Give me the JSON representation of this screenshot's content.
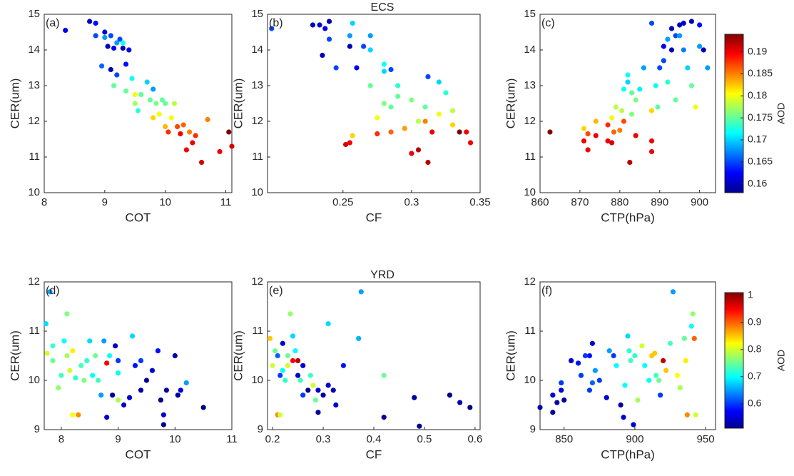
{
  "chart_data": [
    {
      "type": "scatter",
      "panel_label": "(a)",
      "xlabel": "COT",
      "ylabel": "CER(um)",
      "colormap": "jet",
      "xlim": [
        8,
        11.1
      ],
      "ylim": [
        10,
        15
      ],
      "xticks": [
        8,
        9,
        10,
        11
      ],
      "yticks": [
        10,
        11,
        12,
        13,
        14,
        15
      ],
      "clim": [
        0.158,
        0.194
      ],
      "x": [
        8.35,
        8.75,
        8.85,
        8.85,
        9.0,
        9.0,
        9.05,
        9.1,
        9.15,
        9.2,
        9.25,
        9.3,
        9.4,
        9.35,
        8.95,
        9.1,
        9.2,
        9.3,
        9.15,
        9.35,
        9.45,
        9.5,
        9.55,
        9.6,
        9.7,
        9.75,
        9.8,
        9.85,
        9.8,
        9.9,
        9.95,
        10.0,
        10.05,
        10.1,
        10.15,
        10.2,
        10.25,
        10.3,
        10.35,
        10.4,
        10.45,
        10.5,
        10.6,
        10.7,
        10.9,
        11.05,
        11.1,
        9.5,
        10.0
      ],
      "y": [
        14.55,
        14.8,
        14.75,
        14.4,
        14.5,
        14.35,
        14.1,
        14.4,
        14.05,
        14.2,
        14.3,
        14.05,
        14.0,
        13.6,
        13.55,
        13.45,
        13.3,
        14.2,
        13.0,
        12.85,
        13.2,
        12.75,
        12.3,
        12.75,
        13.1,
        12.6,
        12.9,
        12.5,
        12.1,
        12.2,
        12.6,
        11.85,
        11.7,
        12.1,
        12.5,
        11.85,
        11.65,
        11.9,
        11.2,
        11.7,
        11.4,
        11.6,
        10.85,
        12.05,
        11.15,
        11.7,
        11.3,
        12.5,
        12.5
      ],
      "color_values": [
        0.162,
        0.16,
        0.163,
        0.165,
        0.161,
        0.168,
        0.16,
        0.165,
        0.162,
        0.168,
        0.165,
        0.16,
        0.162,
        0.163,
        0.166,
        0.16,
        0.165,
        0.172,
        0.175,
        0.175,
        0.172,
        0.18,
        0.173,
        0.175,
        0.17,
        0.175,
        0.168,
        0.176,
        0.182,
        0.18,
        0.175,
        0.183,
        0.188,
        0.18,
        0.178,
        0.187,
        0.19,
        0.186,
        0.19,
        0.185,
        0.19,
        0.188,
        0.191,
        0.185,
        0.19,
        0.194,
        0.191,
        0.177,
        0.175
      ]
    },
    {
      "type": "scatter",
      "title": "ECS",
      "panel_label": "(b)",
      "xlabel": "CF",
      "ylabel": "CER(um)",
      "colormap": "jet",
      "xlim": [
        0.195,
        0.35
      ],
      "ylim": [
        10,
        15
      ],
      "xticks": [
        0.25,
        0.3,
        0.35
      ],
      "yticks": [
        10,
        11,
        12,
        13,
        14,
        15
      ],
      "clim": [
        0.158,
        0.194
      ],
      "x": [
        0.198,
        0.228,
        0.233,
        0.237,
        0.24,
        0.235,
        0.24,
        0.245,
        0.255,
        0.257,
        0.255,
        0.26,
        0.265,
        0.27,
        0.27,
        0.28,
        0.285,
        0.28,
        0.29,
        0.29,
        0.28,
        0.275,
        0.285,
        0.3,
        0.31,
        0.305,
        0.295,
        0.285,
        0.275,
        0.3,
        0.305,
        0.312,
        0.31,
        0.315,
        0.32,
        0.325,
        0.32,
        0.312,
        0.33,
        0.335,
        0.34,
        0.343,
        0.255,
        0.257,
        0.252,
        0.33,
        0.27
      ],
      "y": [
        14.6,
        14.7,
        14.7,
        14.6,
        14.8,
        13.85,
        14.3,
        13.5,
        14.4,
        14.75,
        14.1,
        13.5,
        14.1,
        14.4,
        14.0,
        13.6,
        13.45,
        13.4,
        13.0,
        12.7,
        12.5,
        12.1,
        12.4,
        12.6,
        12.4,
        12.0,
        11.8,
        11.7,
        11.65,
        11.1,
        11.2,
        10.85,
        12.0,
        11.7,
        12.2,
        12.8,
        13.1,
        13.25,
        12.3,
        11.7,
        11.7,
        11.4,
        11.4,
        11.6,
        11.35,
        11.9,
        13.0
      ],
      "color_values": [
        0.165,
        0.16,
        0.161,
        0.162,
        0.16,
        0.16,
        0.165,
        0.165,
        0.168,
        0.17,
        0.16,
        0.162,
        0.165,
        0.168,
        0.17,
        0.172,
        0.165,
        0.17,
        0.173,
        0.175,
        0.176,
        0.18,
        0.175,
        0.176,
        0.175,
        0.178,
        0.184,
        0.186,
        0.188,
        0.19,
        0.192,
        0.192,
        0.185,
        0.19,
        0.18,
        0.173,
        0.17,
        0.165,
        0.178,
        0.194,
        0.19,
        0.19,
        0.19,
        0.182,
        0.191,
        0.182,
        0.175
      ]
    },
    {
      "type": "scatter",
      "panel_label": "(c)",
      "xlabel": "CTP(hPa)",
      "ylabel": "CER(um)",
      "colormap": "jet",
      "xlim": [
        860,
        904
      ],
      "ylim": [
        10,
        15
      ],
      "xticks": [
        860,
        870,
        880,
        890,
        900
      ],
      "yticks": [
        10,
        11,
        12,
        13,
        14,
        15
      ],
      "clim": [
        0.158,
        0.194
      ],
      "colorbar": {
        "label": "AOD",
        "ticks": [
          0.16,
          0.165,
          0.17,
          0.175,
          0.18,
          0.185,
          0.19
        ]
      },
      "x": [
        862.5,
        871,
        871,
        872,
        872,
        874,
        874,
        877,
        877,
        878,
        878,
        878.5,
        879,
        880,
        880.5,
        881,
        881,
        882,
        882,
        882.5,
        883,
        883,
        884,
        884,
        885,
        886,
        888,
        888,
        888,
        888,
        889,
        889.5,
        890,
        891,
        891,
        892,
        892,
        893,
        893,
        894,
        894,
        895,
        895,
        896,
        896,
        897,
        898,
        898,
        899,
        900,
        900,
        901,
        902
      ],
      "y": [
        11.7,
        11.8,
        11.45,
        11.2,
        11.65,
        12.0,
        11.6,
        11.9,
        11.45,
        11.4,
        12.1,
        11.7,
        12.4,
        11.75,
        12.3,
        12.0,
        12.9,
        13.1,
        13.3,
        10.85,
        12.8,
        12.2,
        12.6,
        11.6,
        12.9,
        13.5,
        14.75,
        11.15,
        11.45,
        12.3,
        13.0,
        12.4,
        13.5,
        13.7,
        14.1,
        14.3,
        13.1,
        14.0,
        14.6,
        14.4,
        12.6,
        14.7,
        14.4,
        14.75,
        14.0,
        13.5,
        14.8,
        13.0,
        12.4,
        14.7,
        14.1,
        14.0,
        13.5
      ],
      "color_values": [
        0.194,
        0.182,
        0.19,
        0.19,
        0.187,
        0.183,
        0.19,
        0.188,
        0.19,
        0.191,
        0.18,
        0.186,
        0.178,
        0.185,
        0.178,
        0.187,
        0.172,
        0.17,
        0.172,
        0.192,
        0.175,
        0.176,
        0.176,
        0.19,
        0.171,
        0.168,
        0.165,
        0.19,
        0.19,
        0.182,
        0.172,
        0.175,
        0.165,
        0.165,
        0.162,
        0.168,
        0.173,
        0.16,
        0.16,
        0.165,
        0.175,
        0.16,
        0.168,
        0.161,
        0.167,
        0.17,
        0.16,
        0.175,
        0.18,
        0.163,
        0.168,
        0.16,
        0.168
      ]
    },
    {
      "type": "scatter",
      "panel_label": "(d)",
      "xlabel": "COT",
      "ylabel": "CER(um)",
      "colormap": "jet",
      "xlim": [
        7.7,
        11
      ],
      "ylim": [
        9,
        12
      ],
      "xticks": [
        8,
        9,
        10,
        11
      ],
      "yticks": [
        9,
        10,
        11,
        12
      ],
      "clim": [
        0.51,
        1.01
      ],
      "x": [
        7.73,
        7.8,
        7.75,
        7.85,
        7.85,
        7.95,
        8.0,
        8.05,
        8.1,
        8.1,
        8.15,
        8.2,
        8.2,
        8.3,
        8.25,
        8.35,
        8.4,
        8.45,
        8.5,
        8.55,
        8.6,
        8.65,
        8.7,
        8.75,
        8.8,
        8.85,
        8.8,
        8.9,
        8.95,
        9.0,
        9.0,
        9.0,
        9.1,
        9.2,
        9.25,
        9.3,
        9.4,
        9.4,
        9.5,
        9.6,
        9.7,
        9.75,
        9.8,
        9.8,
        9.85,
        10.0,
        10.05,
        10.1,
        10.2,
        10.5
      ],
      "y": [
        11.15,
        11.8,
        10.55,
        10.7,
        10.4,
        9.85,
        10.1,
        10.8,
        11.35,
        10.5,
        10.2,
        10.6,
        9.3,
        9.3,
        10.05,
        10.3,
        10.0,
        10.4,
        10.8,
        10.1,
        10.5,
        10.0,
        9.7,
        10.8,
        10.35,
        10.5,
        9.25,
        9.7,
        10.7,
        10.15,
        10.4,
        9.6,
        9.5,
        9.65,
        10.9,
        10.3,
        10.4,
        9.8,
        10.0,
        10.2,
        10.6,
        9.6,
        9.3,
        9.1,
        9.8,
        10.5,
        9.7,
        9.8,
        9.95,
        9.45
      ],
      "color_values": [
        0.68,
        0.65,
        0.8,
        0.73,
        0.75,
        0.77,
        0.73,
        0.7,
        0.76,
        0.78,
        0.8,
        0.83,
        0.82,
        0.88,
        0.72,
        0.73,
        0.76,
        0.72,
        0.68,
        0.7,
        0.75,
        0.73,
        0.65,
        0.65,
        0.95,
        0.7,
        0.55,
        0.52,
        0.55,
        0.7,
        0.6,
        0.78,
        0.55,
        0.55,
        0.68,
        0.58,
        0.6,
        0.53,
        0.52,
        0.55,
        0.58,
        0.52,
        0.55,
        0.52,
        0.53,
        0.53,
        0.52,
        0.55,
        0.65,
        0.51
      ]
    },
    {
      "type": "scatter",
      "title": "YRD",
      "panel_label": "(e)",
      "xlabel": "CF",
      "ylabel": "CER(um)",
      "colormap": "jet",
      "xlim": [
        0.19,
        0.61
      ],
      "ylim": [
        9,
        12
      ],
      "xticks": [
        0.2,
        0.3,
        0.4,
        0.5,
        0.6
      ],
      "yticks": [
        9,
        10,
        11,
        12
      ],
      "clim": [
        0.51,
        1.01
      ],
      "x": [
        0.195,
        0.2,
        0.205,
        0.21,
        0.215,
        0.21,
        0.215,
        0.22,
        0.22,
        0.225,
        0.23,
        0.23,
        0.235,
        0.24,
        0.24,
        0.245,
        0.25,
        0.25,
        0.255,
        0.26,
        0.26,
        0.27,
        0.275,
        0.28,
        0.285,
        0.29,
        0.29,
        0.3,
        0.31,
        0.31,
        0.32,
        0.325,
        0.34,
        0.37,
        0.375,
        0.42,
        0.42,
        0.48,
        0.49,
        0.55,
        0.57,
        0.59
      ],
      "y": [
        10.85,
        10.3,
        10.6,
        9.3,
        9.3,
        10.5,
        10.1,
        10.75,
        10.2,
        10.0,
        10.5,
        10.3,
        11.35,
        10.4,
        10.9,
        10.6,
        10.4,
        10.1,
        10.0,
        9.7,
        10.3,
        9.8,
        10.1,
        9.9,
        9.6,
        9.8,
        9.35,
        9.7,
        9.9,
        11.15,
        9.8,
        9.5,
        10.3,
        10.85,
        11.8,
        10.1,
        9.25,
        9.65,
        9.07,
        9.7,
        9.55,
        9.45
      ],
      "color_values": [
        0.85,
        0.8,
        0.75,
        0.88,
        0.8,
        0.62,
        0.6,
        0.55,
        0.7,
        0.72,
        0.75,
        0.8,
        0.77,
        0.95,
        0.68,
        0.7,
        0.98,
        0.55,
        0.73,
        0.6,
        0.55,
        0.52,
        0.73,
        0.8,
        0.75,
        0.55,
        0.52,
        0.53,
        0.55,
        0.68,
        0.53,
        0.55,
        0.58,
        0.66,
        0.65,
        0.75,
        0.52,
        0.52,
        0.52,
        0.51,
        0.53,
        0.51
      ]
    },
    {
      "type": "scatter",
      "panel_label": "(f)",
      "xlabel": "CTP(hPa)",
      "ylabel": "CER(um)",
      "colormap": "jet",
      "xlim": [
        833,
        957
      ],
      "ylim": [
        9,
        12
      ],
      "xticks": [
        850,
        900,
        950
      ],
      "yticks": [
        9,
        10,
        11,
        12
      ],
      "clim": [
        0.51,
        1.01
      ],
      "colorbar": {
        "label": "AOD",
        "ticks": [
          0.6,
          0.7,
          0.8,
          0.9,
          1
        ]
      },
      "x": [
        833,
        842,
        842,
        845,
        848,
        848,
        850,
        855,
        860,
        862,
        865,
        868,
        868,
        870,
        870,
        872,
        875,
        880,
        882,
        885,
        887,
        890,
        892,
        893,
        895,
        896,
        897,
        899,
        900,
        902,
        905,
        907,
        910,
        912,
        914,
        915,
        917,
        918,
        920,
        922,
        925,
        927,
        930,
        932,
        935,
        936,
        937,
        940,
        941,
        942,
        943
      ],
      "y": [
        9.45,
        9.35,
        9.7,
        9.55,
        9.8,
        9.95,
        9.6,
        10.4,
        10.35,
        10.1,
        10.5,
        10.5,
        9.8,
        10.75,
        9.95,
        10.2,
        10.0,
        9.65,
        10.6,
        10.5,
        10.3,
        9.5,
        9.25,
        9.9,
        10.9,
        10.6,
        10.4,
        9.1,
        10.5,
        9.6,
        10.7,
        10.3,
        10.0,
        10.5,
        10.55,
        10.1,
        10.0,
        9.7,
        10.4,
        10.2,
        10.75,
        11.8,
        10.1,
        9.85,
        10.85,
        10.4,
        9.3,
        11.1,
        11.35,
        10.85,
        9.3
      ],
      "color_values": [
        0.53,
        0.52,
        0.55,
        0.53,
        0.55,
        0.6,
        0.52,
        0.55,
        0.58,
        0.6,
        0.6,
        0.58,
        0.6,
        0.55,
        0.62,
        0.65,
        0.6,
        0.55,
        0.65,
        0.6,
        0.7,
        0.53,
        0.55,
        0.7,
        0.68,
        0.72,
        0.73,
        0.55,
        0.72,
        0.78,
        0.8,
        0.7,
        0.7,
        0.85,
        0.85,
        0.73,
        0.75,
        0.6,
        0.98,
        0.85,
        0.73,
        0.65,
        0.82,
        0.78,
        0.75,
        0.83,
        0.88,
        0.7,
        0.77,
        0.9,
        0.8
      ]
    }
  ]
}
